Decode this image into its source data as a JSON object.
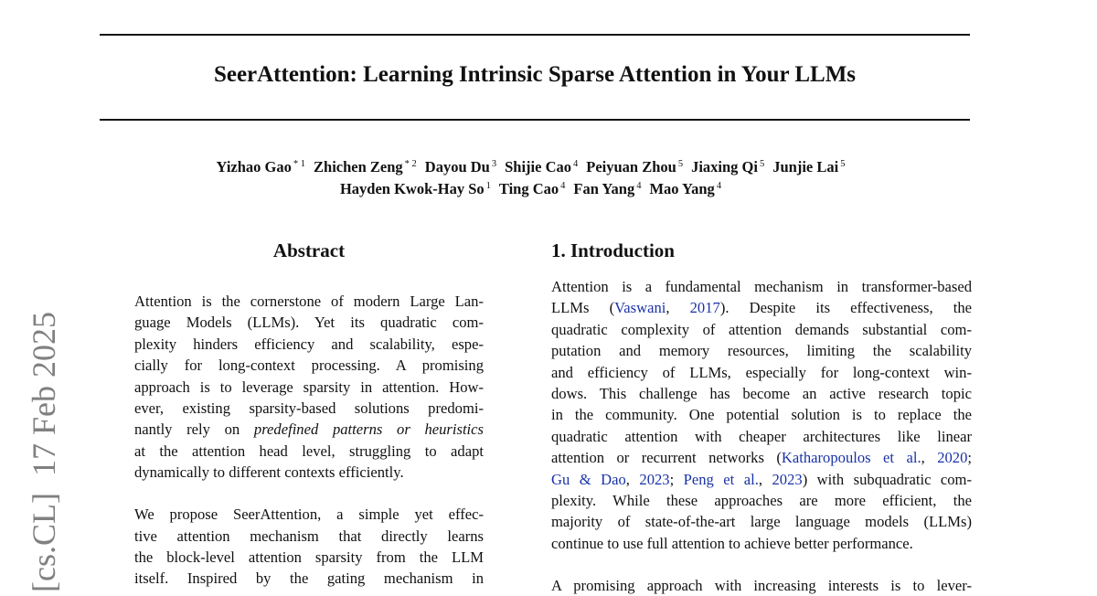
{
  "sidebar": {
    "text": "[cs.CL]  17 Feb 2025"
  },
  "title": "SeerAttention: Learning Intrinsic Sparse Attention in Your LLMs",
  "authors": {
    "row1": [
      {
        "name": "Yizhao Gao",
        "aff": "* 1"
      },
      {
        "name": "Zhichen Zeng",
        "aff": "* 2"
      },
      {
        "name": "Dayou Du",
        "aff": "3"
      },
      {
        "name": "Shijie Cao",
        "aff": "4"
      },
      {
        "name": "Peiyuan Zhou",
        "aff": "5"
      },
      {
        "name": "Jiaxing Qi",
        "aff": "5"
      },
      {
        "name": "Junjie Lai",
        "aff": "5"
      }
    ],
    "row2": [
      {
        "name": "Hayden Kwok-Hay So",
        "aff": "1"
      },
      {
        "name": "Ting Cao",
        "aff": "4"
      },
      {
        "name": "Fan Yang",
        "aff": "4"
      },
      {
        "name": "Mao Yang",
        "aff": "4"
      }
    ]
  },
  "abstract": {
    "heading": "Abstract",
    "paragraphs": [
      [
        [
          {
            "t": "Attention is the cornerstone of modern Large Lan-"
          }
        ],
        [
          {
            "t": "guage Models (LLMs).  Yet its quadratic com-"
          }
        ],
        [
          {
            "t": "plexity hinders efficiency and scalability, espe-"
          }
        ],
        [
          {
            "t": "cially for long-context processing. A promising"
          }
        ],
        [
          {
            "t": "approach is to leverage sparsity in attention. How-"
          }
        ],
        [
          {
            "t": "ever, existing sparsity-based solutions predomi-"
          }
        ],
        [
          {
            "t": "nantly rely on "
          },
          {
            "t": "predefined patterns or heuristics",
            "s": "it"
          }
        ],
        [
          {
            "t": "at the attention head level, struggling to adapt"
          }
        ],
        [
          {
            "t": "dynamically to different contexts efficiently."
          }
        ]
      ],
      [
        [
          {
            "t": "We propose SeerAttention, a simple yet effec-"
          }
        ],
        [
          {
            "t": "tive attention mechanism that directly learns"
          }
        ],
        [
          {
            "t": "the block-level attention sparsity from the LLM"
          }
        ],
        [
          {
            "t": "itself.   Inspired by the gating mechanism in"
          }
        ]
      ]
    ]
  },
  "introduction": {
    "heading": "1. Introduction",
    "paragraphs": [
      [
        [
          {
            "t": "Attention is a fundamental mechanism in transformer-based"
          }
        ],
        [
          {
            "t": "LLMs ("
          },
          {
            "t": "Vaswani",
            "s": "link"
          },
          {
            "t": ", "
          },
          {
            "t": "2017",
            "s": "link"
          },
          {
            "t": ").   Despite its effectiveness, the"
          }
        ],
        [
          {
            "t": "quadratic complexity of attention demands substantial com-"
          }
        ],
        [
          {
            "t": "putation and memory resources, limiting the scalability"
          }
        ],
        [
          {
            "t": "and efficiency of LLMs, especially for long-context win-"
          }
        ],
        [
          {
            "t": "dows. This challenge has become an active research topic"
          }
        ],
        [
          {
            "t": "in the community. One potential solution is to replace the"
          }
        ],
        [
          {
            "t": "quadratic attention with cheaper architectures like linear"
          }
        ],
        [
          {
            "t": "attention or recurrent networks ("
          },
          {
            "t": "Katharopoulos et al.",
            "s": "link"
          },
          {
            "t": ", "
          },
          {
            "t": "2020",
            "s": "link"
          },
          {
            "t": ";"
          }
        ],
        [
          {
            "t": "Gu & Dao",
            "s": "link"
          },
          {
            "t": ", "
          },
          {
            "t": "2023",
            "s": "link"
          },
          {
            "t": "; "
          },
          {
            "t": "Peng et al.",
            "s": "link"
          },
          {
            "t": ", "
          },
          {
            "t": "2023",
            "s": "link"
          },
          {
            "t": ") with subquadratic com-"
          }
        ],
        [
          {
            "t": "plexity.   While these approaches are more efficient, the"
          }
        ],
        [
          {
            "t": "majority of state-of-the-art large language models (LLMs)"
          }
        ],
        [
          {
            "t": "continue to use full attention to achieve better performance."
          }
        ]
      ],
      [
        [
          {
            "t": "A promising approach with increasing interests is to lever-"
          }
        ]
      ]
    ]
  },
  "colors": {
    "link": "#1a33a6",
    "sidebar": "#808080"
  }
}
